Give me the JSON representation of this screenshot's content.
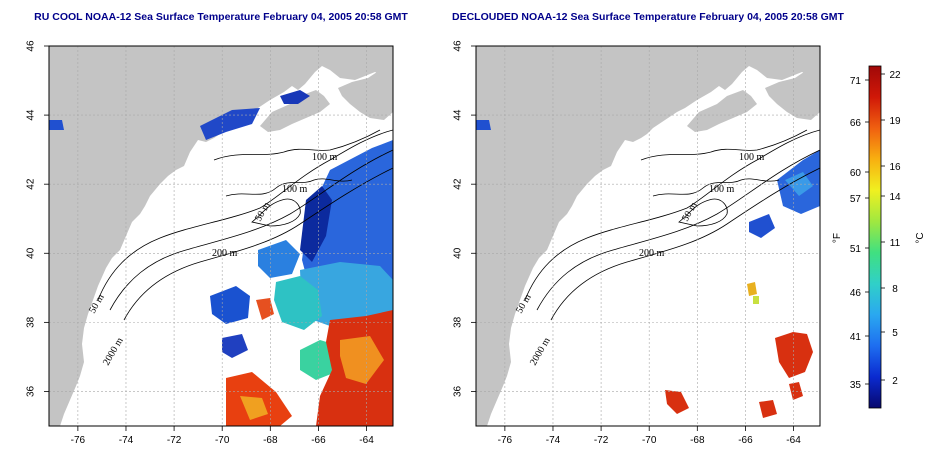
{
  "panels": [
    {
      "title": "RU COOL NOAA-12 Sea Surface Temperature February 04, 2005 20:58 GMT",
      "contour_labels": [
        "100 m",
        "100 m",
        "50 m",
        "200 m",
        "50 m",
        "2000 m"
      ]
    },
    {
      "title": "DECLOUDED NOAA-12 Sea Surface Temperature February 04, 2005 20:58 GMT",
      "contour_labels": [
        "100 m",
        "100 m",
        "50 m",
        "200 m",
        "50 m",
        "2000 m"
      ]
    }
  ],
  "axes": {
    "lon_ticks": [
      "-76",
      "-74",
      "-72",
      "-70",
      "-68",
      "-66",
      "-64"
    ],
    "lat_ticks": [
      "46",
      "44",
      "42",
      "40",
      "38",
      "36"
    ],
    "lon_range": [
      -77.2,
      -62.9
    ],
    "lat_range": [
      35.0,
      46.0
    ]
  },
  "colorbar": {
    "f_label": "°F",
    "c_label": "°C",
    "f_ticks": [
      "71",
      "66",
      "60",
      "57",
      "51",
      "46",
      "41",
      "35"
    ],
    "c_ticks": [
      "22",
      "19",
      "16",
      "14",
      "11",
      "8",
      "5",
      "2"
    ],
    "colors": [
      "#08086e",
      "#0a2ad0",
      "#1e6ef0",
      "#2aa8f0",
      "#30d0c8",
      "#40e080",
      "#a0e840",
      "#f0f020",
      "#f8b010",
      "#f06010",
      "#d01808",
      "#a00808"
    ]
  },
  "colors": {
    "land": "#c4c4c4",
    "ocean": "#ffffff",
    "grid": "#a8a8a8",
    "title": "#00008b"
  }
}
